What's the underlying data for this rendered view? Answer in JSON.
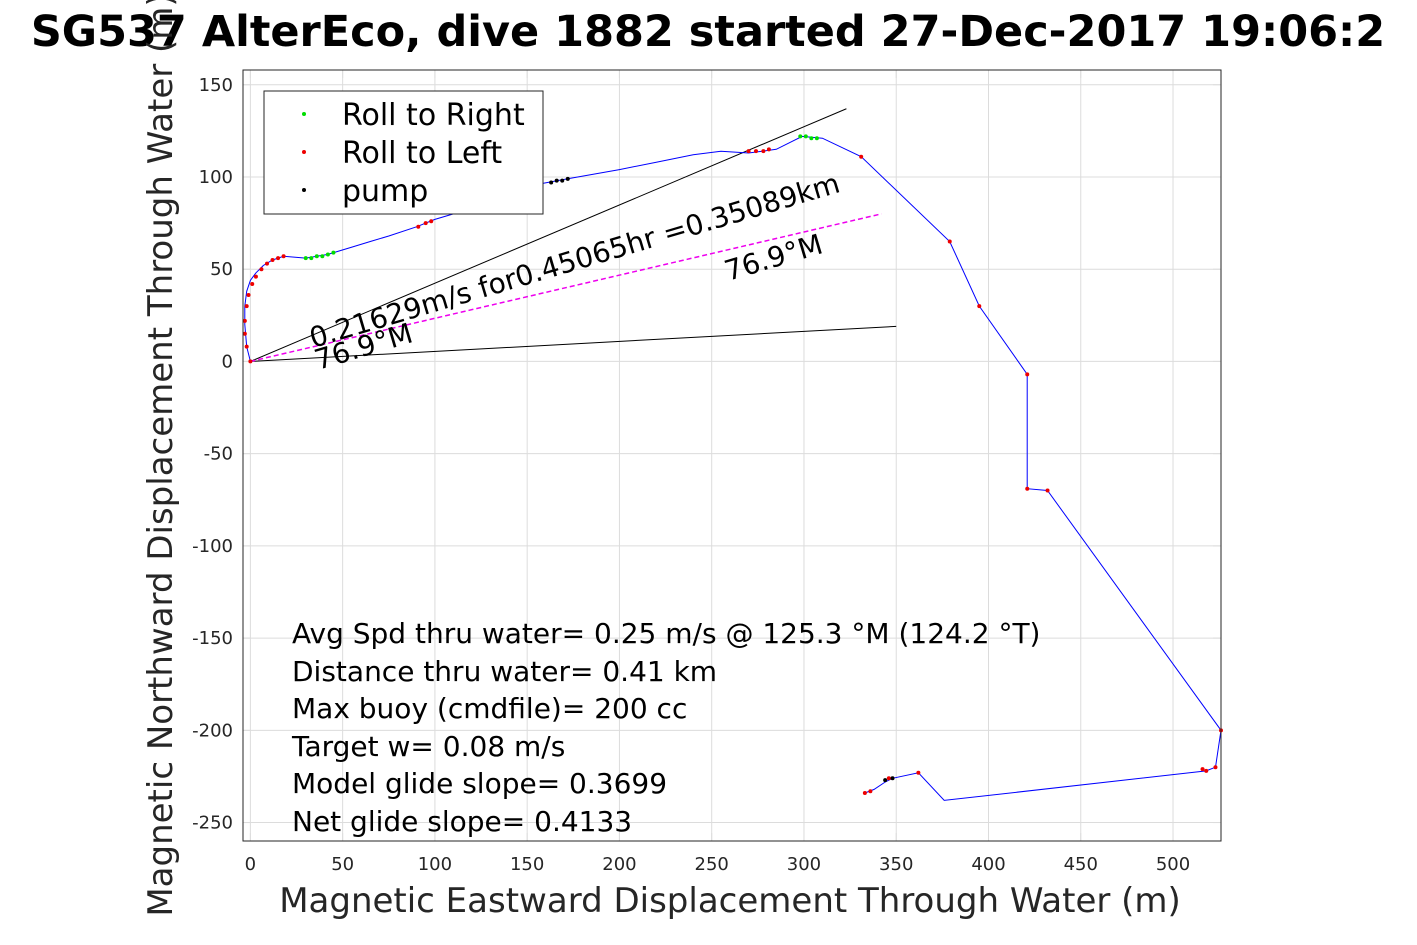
{
  "chart_data": {
    "type": "line",
    "title": "SG537 AlterEco, dive 1882 started 27-Dec-2017 19:06:2",
    "xlabel": "Magnetic Eastward Displacement Through Water (m)",
    "ylabel": "Magnetic Northward Displacement Through Water (m)",
    "xlim": [
      -4,
      526
    ],
    "ylim": [
      -260,
      158
    ],
    "xticks": [
      0,
      50,
      100,
      150,
      200,
      250,
      300,
      350,
      400,
      450,
      500
    ],
    "yticks": [
      150,
      100,
      50,
      0,
      -50,
      -100,
      -150,
      -200,
      -250
    ],
    "grid": true,
    "legend_position": "top-left",
    "legend": [
      {
        "label": "Roll to Right",
        "color": "#00dd00"
      },
      {
        "label": "Roll to Left",
        "color": "#ee0000"
      },
      {
        "label": "pump",
        "color": "#000000"
      }
    ],
    "track": {
      "color": "#0000ff",
      "points": [
        [
          0,
          0
        ],
        [
          -2,
          8
        ],
        [
          -3,
          20
        ],
        [
          -3,
          30
        ],
        [
          -2,
          38
        ],
        [
          0,
          44
        ],
        [
          3,
          48
        ],
        [
          7,
          52
        ],
        [
          12,
          55
        ],
        [
          18,
          57
        ],
        [
          30,
          56
        ],
        [
          42,
          58
        ],
        [
          55,
          62
        ],
        [
          65,
          65
        ],
        [
          75,
          68
        ],
        [
          90,
          73
        ],
        [
          100,
          77
        ],
        [
          110,
          80
        ],
        [
          130,
          88
        ],
        [
          150,
          95
        ],
        [
          172,
          99
        ],
        [
          200,
          104
        ],
        [
          220,
          108
        ],
        [
          240,
          112
        ],
        [
          255,
          114
        ],
        [
          270,
          113
        ],
        [
          285,
          115
        ],
        [
          299,
          122
        ],
        [
          310,
          121
        ],
        [
          331,
          111
        ],
        [
          379,
          65
        ],
        [
          395,
          30
        ],
        [
          421,
          -7
        ],
        [
          421,
          -69
        ],
        [
          432,
          -70
        ],
        [
          526,
          -200
        ],
        [
          523,
          -220
        ],
        [
          518,
          -222
        ],
        [
          376,
          -238
        ],
        [
          362,
          -223
        ],
        [
          348,
          -226
        ],
        [
          344,
          -228
        ],
        [
          338,
          -232
        ],
        [
          333,
          -234
        ]
      ]
    },
    "roll_right_points": [
      [
        30,
        56
      ],
      [
        33,
        56
      ],
      [
        36,
        57
      ],
      [
        39,
        57
      ],
      [
        42,
        58
      ],
      [
        45,
        59
      ],
      [
        298,
        122
      ],
      [
        301,
        122
      ],
      [
        304,
        121
      ],
      [
        307,
        121
      ]
    ],
    "roll_left_points": [
      [
        0,
        0
      ],
      [
        -2,
        8
      ],
      [
        -3,
        15
      ],
      [
        -3,
        22
      ],
      [
        -2,
        30
      ],
      [
        -1,
        36
      ],
      [
        1,
        42
      ],
      [
        3,
        46
      ],
      [
        6,
        50
      ],
      [
        9,
        53
      ],
      [
        12,
        55
      ],
      [
        15,
        56
      ],
      [
        18,
        57
      ],
      [
        91,
        73
      ],
      [
        95,
        75
      ],
      [
        98,
        76
      ],
      [
        270,
        114
      ],
      [
        274,
        114
      ],
      [
        278,
        114
      ],
      [
        281,
        115
      ],
      [
        331,
        111
      ],
      [
        379,
        65
      ],
      [
        395,
        30
      ],
      [
        421,
        -7
      ],
      [
        421,
        -69
      ],
      [
        432,
        -70
      ],
      [
        526,
        -200
      ],
      [
        523,
        -220
      ],
      [
        516,
        -221
      ],
      [
        518,
        -222
      ],
      [
        362,
        -223
      ],
      [
        346,
        -226
      ],
      [
        336,
        -233
      ],
      [
        333,
        -234
      ]
    ],
    "pump_points": [
      [
        163,
        97
      ],
      [
        166,
        98
      ],
      [
        169,
        98
      ],
      [
        172,
        99
      ],
      [
        344,
        -227
      ],
      [
        348,
        -226
      ]
    ],
    "current_vector": {
      "label": "0.21629m/s for0.45065hr =0.35089km",
      "heading_label": "76.9°M",
      "color": "#ee00ee",
      "end": [
        342,
        80
      ]
    },
    "heading_lines": {
      "color": "#000000",
      "label": "76.9°M",
      "lines": [
        {
          "end": [
            323,
            137
          ]
        },
        {
          "end": [
            350,
            19
          ]
        }
      ]
    },
    "annotations": [
      "Avg Spd thru water=  0.25 m/s @ 125.3 °M (124.2 °T)",
      "Distance thru water=  0.41 km",
      "Max buoy (cmdfile)= 200 cc",
      "Target w= 0.08 m/s",
      "Model glide slope= 0.3699",
      "Net glide slope= 0.4133"
    ]
  }
}
